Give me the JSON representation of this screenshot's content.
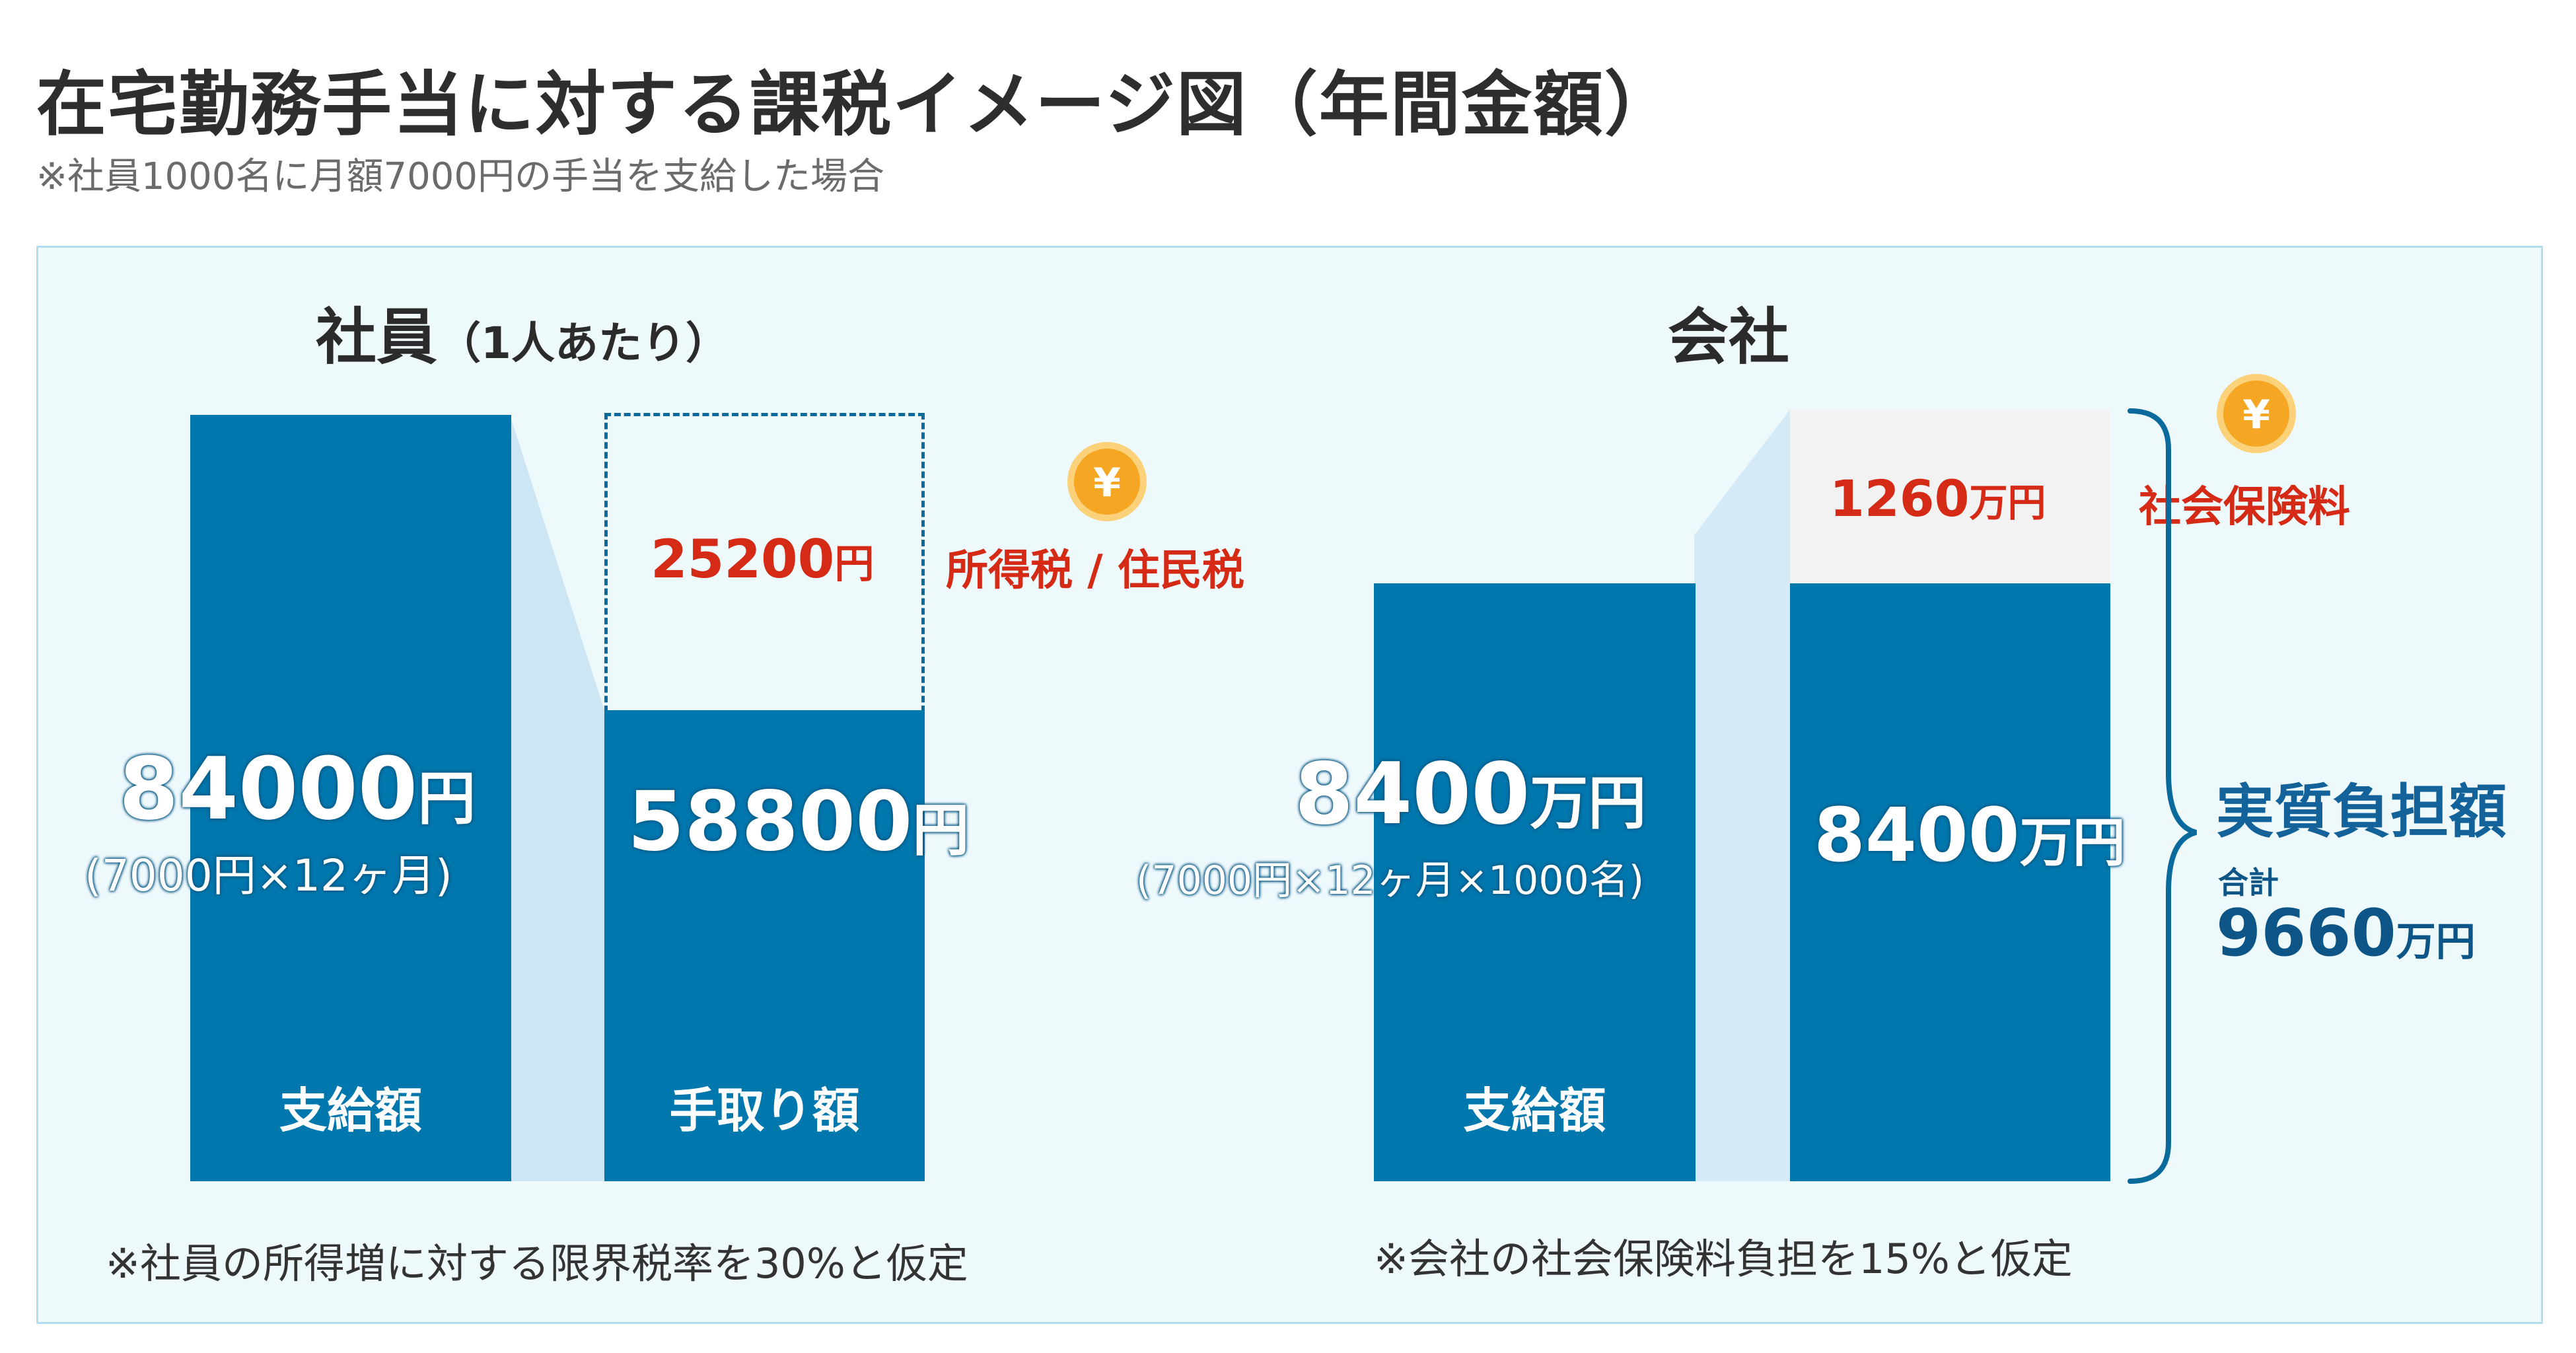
{
  "header": {
    "title": "在宅勤務手当に対する課税イメージ図（年間金額）",
    "subtitle": "※社員1000名に月額7000円の手当を支給した場合"
  },
  "employee": {
    "heading": "社員",
    "heading_note": "（1人あたり）",
    "paid": {
      "amount": "84000",
      "unit": "円",
      "breakdown": "(7000円×12ヶ月)",
      "label": "支給額"
    },
    "takehome": {
      "amount": "58800",
      "unit": "円",
      "label": "手取り額"
    },
    "tax": {
      "amount": "25200",
      "unit": "円",
      "label": "所得税 / 住民税"
    },
    "note": "※社員の所得増に対する限界税率を30%と仮定"
  },
  "company": {
    "heading": "会社",
    "paid": {
      "amount": "8400",
      "unit": "万円",
      "breakdown": "(7000円×12ヶ月×1000名)",
      "label": "支給額"
    },
    "cost": {
      "amount": "8400",
      "unit": "万円"
    },
    "insurance": {
      "amount": "1260",
      "unit": "万円",
      "label": "社会保険料"
    },
    "burden": {
      "label": "実質負担額",
      "total_label": "合計",
      "total_amount": "9660",
      "total_unit": "万円"
    },
    "note": "※会社の社会保険料負担を15%と仮定"
  },
  "icons": {
    "coin_symbol": "¥"
  },
  "colors": {
    "bar": "#0077ad",
    "connector": "#cce6f4",
    "panel_bg": "#eef9fc",
    "accent_red": "#d42a16",
    "coin": "#f5a623"
  }
}
